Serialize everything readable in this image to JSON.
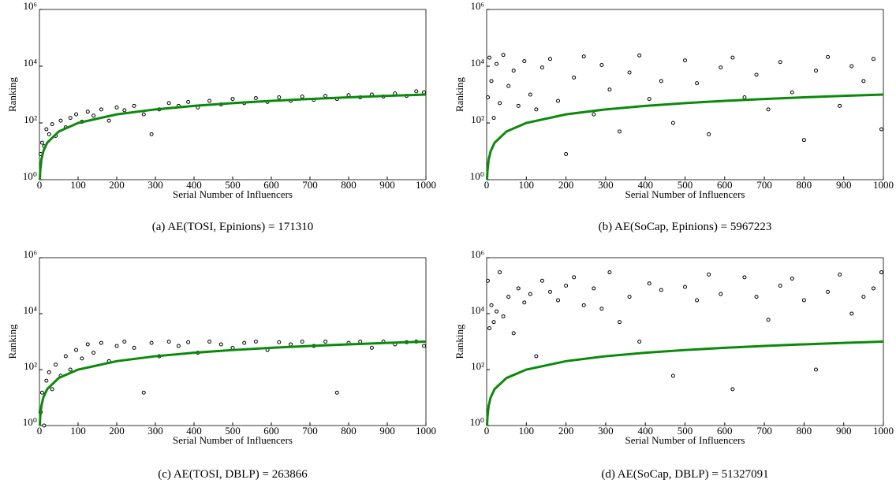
{
  "chart_data": [
    {
      "type": "scatter",
      "caption": "(a) AE(TOSI, Epinions) = 171310",
      "xlabel": "Serial Number of Influencers",
      "ylabel": "Ranking",
      "xlim": [
        0,
        1000
      ],
      "xticks": [
        0,
        100,
        200,
        300,
        400,
        500,
        600,
        700,
        800,
        900,
        1000
      ],
      "ylim": [
        1,
        1000000
      ],
      "yscale": "log",
      "yticks": [
        {
          "value": 1,
          "label": "10⁰"
        },
        {
          "value": 100,
          "label": "10²"
        },
        {
          "value": 10000,
          "label": "10⁴"
        },
        {
          "value": 1000000,
          "label": "10⁶"
        }
      ],
      "series": [
        {
          "style": "points",
          "color": "#000000",
          "x": [
            3,
            7,
            12,
            18,
            25,
            33,
            42,
            55,
            68,
            80,
            95,
            110,
            125,
            140,
            160,
            180,
            200,
            220,
            245,
            270,
            290,
            310,
            335,
            360,
            385,
            410,
            440,
            470,
            500,
            530,
            560,
            590,
            620,
            650,
            680,
            710,
            740,
            770,
            800,
            830,
            860,
            890,
            920,
            950,
            975,
            995
          ],
          "values": [
            8,
            20,
            15,
            60,
            40,
            90,
            35,
            120,
            70,
            150,
            200,
            110,
            250,
            180,
            300,
            120,
            350,
            280,
            400,
            200,
            40,
            300,
            500,
            400,
            550,
            350,
            600,
            450,
            700,
            500,
            750,
            550,
            800,
            600,
            850,
            650,
            900,
            700,
            950,
            800,
            1000,
            850,
            1100,
            900,
            1300,
            1200
          ]
        },
        {
          "style": "line",
          "color": "#0a8a0a",
          "x": [
            1,
            2,
            5,
            10,
            20,
            50,
            100,
            200,
            300,
            400,
            500,
            600,
            700,
            800,
            900,
            1000
          ],
          "values": [
            1,
            2,
            5,
            10,
            20,
            50,
            100,
            200,
            300,
            400,
            500,
            600,
            700,
            800,
            900,
            1000
          ]
        }
      ]
    },
    {
      "type": "scatter",
      "caption": "(b) AE(SoCap, Epinions) = 5967223",
      "xlabel": "Serial Number of Influencers",
      "ylabel": "Ranking",
      "xlim": [
        0,
        1000
      ],
      "xticks": [
        0,
        100,
        200,
        300,
        400,
        500,
        600,
        700,
        800,
        900,
        1000
      ],
      "ylim": [
        1,
        1000000
      ],
      "yscale": "log",
      "yticks": [
        {
          "value": 1,
          "label": "10⁰"
        },
        {
          "value": 100,
          "label": "10²"
        },
        {
          "value": 10000,
          "label": "10⁴"
        },
        {
          "value": 1000000,
          "label": "10⁶"
        }
      ],
      "series": [
        {
          "style": "points",
          "color": "#000000",
          "x": [
            3,
            7,
            12,
            18,
            25,
            33,
            42,
            55,
            68,
            80,
            95,
            110,
            125,
            140,
            160,
            180,
            200,
            220,
            245,
            270,
            290,
            310,
            335,
            360,
            385,
            410,
            440,
            470,
            500,
            530,
            560,
            590,
            620,
            650,
            680,
            710,
            740,
            770,
            800,
            830,
            860,
            890,
            920,
            950,
            975,
            995
          ],
          "values": [
            800,
            20000,
            3000,
            150,
            12000,
            500,
            25000,
            2000,
            7000,
            400,
            15000,
            1000,
            300,
            9000,
            18000,
            600,
            8,
            4000,
            22000,
            200,
            11000,
            1500,
            50,
            6000,
            24000,
            700,
            3000,
            100,
            16000,
            2500,
            40,
            9000,
            20000,
            800,
            5000,
            300,
            14000,
            1200,
            25,
            7000,
            21000,
            400,
            10000,
            3000,
            18000,
            60
          ]
        },
        {
          "style": "line",
          "color": "#0a8a0a",
          "x": [
            1,
            2,
            5,
            10,
            20,
            50,
            100,
            200,
            300,
            400,
            500,
            600,
            700,
            800,
            900,
            1000
          ],
          "values": [
            1,
            2,
            5,
            10,
            20,
            50,
            100,
            200,
            300,
            400,
            500,
            600,
            700,
            800,
            900,
            1000
          ]
        }
      ]
    },
    {
      "type": "scatter",
      "caption": "(c) AE(TOSI, DBLP) = 263866",
      "xlabel": "Serial Number of Influencers",
      "ylabel": "Ranking",
      "xlim": [
        0,
        1000
      ],
      "xticks": [
        0,
        100,
        200,
        300,
        400,
        500,
        600,
        700,
        800,
        900,
        1000
      ],
      "ylim": [
        1,
        1000000
      ],
      "yscale": "log",
      "yticks": [
        {
          "value": 1,
          "label": "10⁰"
        },
        {
          "value": 100,
          "label": "10²"
        },
        {
          "value": 10000,
          "label": "10⁴"
        },
        {
          "value": 1000000,
          "label": "10⁶"
        }
      ],
      "series": [
        {
          "style": "points",
          "color": "#000000",
          "x": [
            3,
            7,
            12,
            18,
            25,
            33,
            42,
            55,
            68,
            80,
            95,
            110,
            125,
            140,
            160,
            180,
            200,
            220,
            245,
            270,
            290,
            310,
            335,
            360,
            385,
            410,
            440,
            470,
            500,
            530,
            560,
            590,
            620,
            650,
            680,
            710,
            740,
            770,
            800,
            830,
            860,
            890,
            920,
            950,
            975,
            995
          ],
          "values": [
            3,
            15,
            1,
            40,
            80,
            20,
            150,
            60,
            300,
            100,
            500,
            250,
            800,
            400,
            900,
            200,
            700,
            1000,
            600,
            15,
            900,
            300,
            1000,
            700,
            950,
            400,
            1000,
            800,
            600,
            900,
            1000,
            500,
            950,
            800,
            1000,
            700,
            1000,
            15,
            900,
            1000,
            600,
            1000,
            800,
            950,
            1000,
            700
          ]
        },
        {
          "style": "line",
          "color": "#0a8a0a",
          "x": [
            1,
            2,
            5,
            10,
            20,
            50,
            100,
            200,
            300,
            400,
            500,
            600,
            700,
            800,
            900,
            1000
          ],
          "values": [
            1,
            2,
            5,
            10,
            20,
            50,
            100,
            200,
            300,
            400,
            500,
            600,
            700,
            800,
            900,
            1000
          ]
        }
      ]
    },
    {
      "type": "scatter",
      "caption": "(d) AE(SoCap, DBLP) = 51327091",
      "xlabel": "Serial Number of Influencers",
      "ylabel": "Ranking",
      "xlim": [
        0,
        1000
      ],
      "xticks": [
        0,
        100,
        200,
        300,
        400,
        500,
        600,
        700,
        800,
        900,
        1000
      ],
      "ylim": [
        1,
        1000000
      ],
      "yscale": "log",
      "yticks": [
        {
          "value": 1,
          "label": "10⁰"
        },
        {
          "value": 100,
          "label": "10²"
        },
        {
          "value": 10000,
          "label": "10⁴"
        },
        {
          "value": 1000000,
          "label": "10⁶"
        }
      ],
      "series": [
        {
          "style": "points",
          "color": "#000000",
          "x": [
            3,
            7,
            12,
            18,
            25,
            33,
            42,
            55,
            68,
            80,
            95,
            110,
            125,
            140,
            160,
            180,
            200,
            220,
            245,
            270,
            290,
            310,
            335,
            360,
            385,
            410,
            440,
            470,
            500,
            530,
            560,
            590,
            620,
            650,
            680,
            710,
            740,
            770,
            800,
            830,
            860,
            890,
            920,
            950,
            975,
            995
          ],
          "values": [
            150000,
            3000,
            20000,
            5000,
            12000,
            300000,
            8000,
            40000,
            2000,
            80000,
            25000,
            50000,
            300,
            150000,
            60000,
            30000,
            100000,
            200000,
            20000,
            80000,
            15000,
            300000,
            5000,
            40000,
            1000,
            120000,
            70000,
            60,
            90000,
            30000,
            250000,
            50000,
            20,
            200000,
            40000,
            6000,
            100000,
            180000,
            30000,
            100,
            60000,
            250000,
            10000,
            40000,
            80000,
            300000
          ]
        },
        {
          "style": "line",
          "color": "#0a8a0a",
          "x": [
            1,
            2,
            5,
            10,
            20,
            50,
            100,
            200,
            300,
            400,
            500,
            600,
            700,
            800,
            900,
            1000
          ],
          "values": [
            1,
            2,
            5,
            10,
            20,
            50,
            100,
            200,
            300,
            400,
            500,
            600,
            700,
            800,
            900,
            1000
          ]
        }
      ]
    }
  ]
}
